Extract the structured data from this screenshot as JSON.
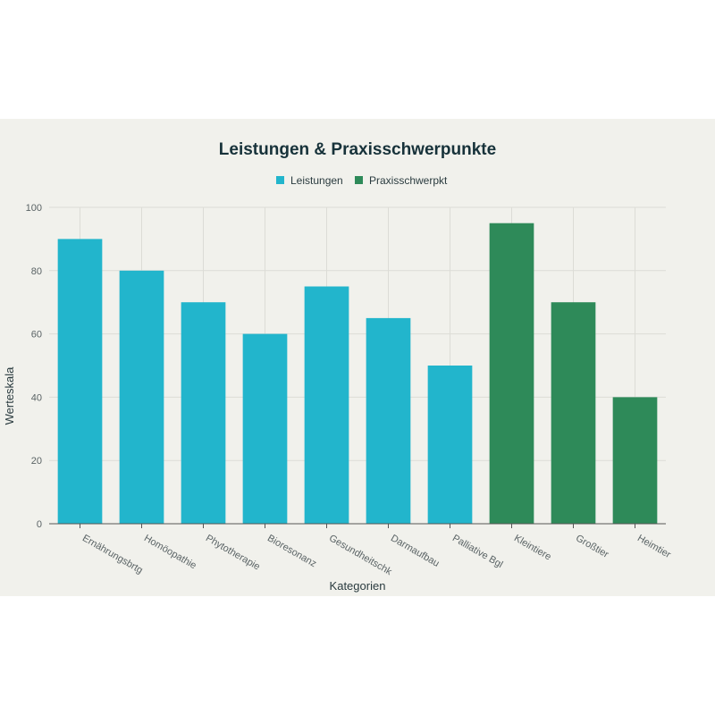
{
  "chart_data": {
    "type": "bar",
    "title": "Leistungen & Praxisschwerpunkte",
    "xlabel": "Kategorien",
    "ylabel": "Werteskala",
    "ylim": [
      0,
      100
    ],
    "yticks": [
      0,
      20,
      40,
      60,
      80,
      100
    ],
    "grid": true,
    "legend_position": "top-center",
    "categories": [
      "Ernährungsbrtg",
      "Homöopathie",
      "Phytotherapie",
      "Bioresonanz",
      "Gesundheitschk",
      "Darmaufbau",
      "Palliative Bgl",
      "Kleintiere",
      "Großtier",
      "Heimtier"
    ],
    "series": [
      {
        "name": "Leistungen",
        "color": "#22b5cc",
        "values": [
          90,
          80,
          70,
          60,
          75,
          65,
          50,
          null,
          null,
          null
        ]
      },
      {
        "name": "Praxisschwerpkt",
        "color": "#2e8a59",
        "values": [
          null,
          null,
          null,
          null,
          null,
          null,
          null,
          95,
          70,
          40
        ]
      }
    ]
  }
}
